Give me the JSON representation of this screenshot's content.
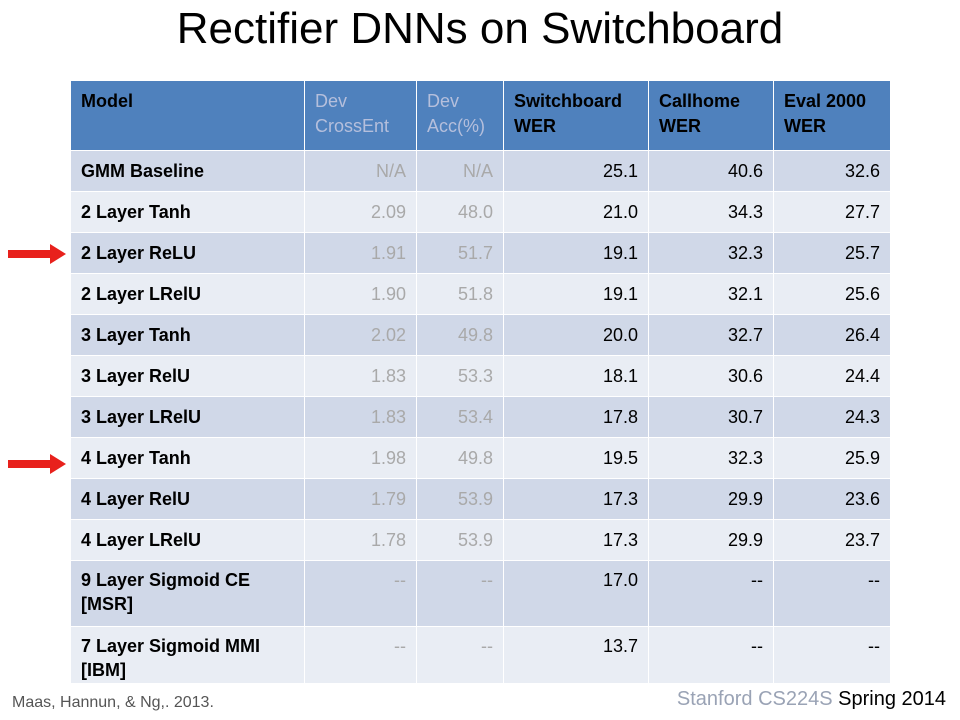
{
  "title": "Rectifier DNNs on Switchboard",
  "table": {
    "headers": [
      {
        "l1": "Model",
        "l2": "",
        "muted": false
      },
      {
        "l1": "Dev",
        "l2": "CrossEnt",
        "muted": true
      },
      {
        "l1": "Dev",
        "l2": "Acc(%)",
        "muted": true
      },
      {
        "l1": "Switchboard",
        "l2": "WER",
        "muted": false
      },
      {
        "l1": "Callhome",
        "l2": "WER",
        "muted": false
      },
      {
        "l1": "Eval 2000",
        "l2": "WER",
        "muted": false
      }
    ],
    "rows": [
      {
        "model": "GMM Baseline",
        "cols": [
          "N/A",
          "N/A",
          "25.1",
          "40.6",
          "32.6"
        ]
      },
      {
        "model": "2 Layer Tanh",
        "cols": [
          "2.09",
          "48.0",
          "21.0",
          "34.3",
          "27.7"
        ]
      },
      {
        "model": "2 Layer ReLU",
        "cols": [
          "1.91",
          "51.7",
          "19.1",
          "32.3",
          "25.7"
        ]
      },
      {
        "model": "2 Layer LRelU",
        "cols": [
          "1.90",
          "51.8",
          "19.1",
          "32.1",
          "25.6"
        ]
      },
      {
        "model": "3 Layer Tanh",
        "cols": [
          "2.02",
          "49.8",
          "20.0",
          "32.7",
          "26.4"
        ]
      },
      {
        "model": "3 Layer RelU",
        "cols": [
          "1.83",
          "53.3",
          "18.1",
          "30.6",
          "24.4"
        ]
      },
      {
        "model": "3 Layer LRelU",
        "cols": [
          "1.83",
          "53.4",
          "17.8",
          "30.7",
          "24.3"
        ]
      },
      {
        "model": "4 Layer Tanh",
        "cols": [
          "1.98",
          "49.8",
          "19.5",
          "32.3",
          "25.9"
        ]
      },
      {
        "model": "4 Layer RelU",
        "cols": [
          "1.79",
          "53.9",
          "17.3",
          "29.9",
          "23.6"
        ]
      },
      {
        "model": "4 Layer LRelU",
        "cols": [
          "1.78",
          "53.9",
          "17.3",
          "29.9",
          "23.7"
        ]
      },
      {
        "model": "9 Layer Sigmoid CE [MSR]",
        "cols": [
          "--",
          "--",
          "17.0",
          "--",
          "--"
        ]
      },
      {
        "model": "7 Layer Sigmoid MMI [IBM]",
        "cols": [
          "--",
          "--",
          "13.7",
          "--",
          "--"
        ]
      }
    ]
  },
  "arrow_color": "#e8211c",
  "citation": "Maas, Hannun, & Ng,. 2013.",
  "footer": {
    "faded": "Stanford CS224S",
    "main": "Spring 2014"
  }
}
